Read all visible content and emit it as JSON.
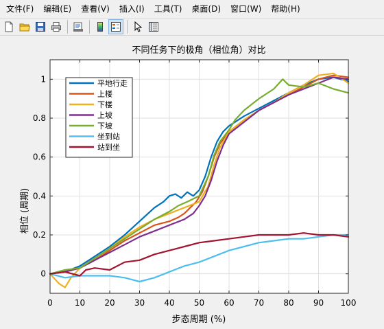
{
  "menubar": {
    "items": [
      "文件(F)",
      "编辑(E)",
      "查看(V)",
      "插入(I)",
      "工具(T)",
      "桌面(D)",
      "窗口(W)",
      "帮助(H)"
    ]
  },
  "toolbar": {
    "buttons": [
      "new-file-icon",
      "open-folder-icon",
      "save-icon",
      "print-icon",
      "print-preview-icon",
      "colorbar-icon",
      "legend-icon",
      "pointer-icon",
      "property-inspector-icon"
    ]
  },
  "chart_data": {
    "type": "line",
    "title": "不同任务下的极角（相位角）对比",
    "xlabel": "步态周期 (%)",
    "ylabel": "相位 (周期)",
    "xlim": [
      0,
      100
    ],
    "ylim": [
      -0.1,
      1.1
    ],
    "xticks": [
      0,
      10,
      20,
      30,
      40,
      50,
      60,
      70,
      80,
      90,
      100
    ],
    "yticks": [
      0,
      0.2,
      0.4,
      0.6,
      0.8,
      1
    ],
    "xtick_labels": [
      "0",
      "10",
      "20",
      "30",
      "40",
      "50",
      "60",
      "70",
      "80",
      "90",
      "100"
    ],
    "ytick_labels": [
      "0",
      "0.2",
      "0.4",
      "0.6",
      "0.8",
      "1"
    ],
    "grid": true,
    "legend_position": "top-left",
    "series": [
      {
        "name": "平地行走",
        "color": "#0072BD",
        "x": [
          0,
          5,
          10,
          15,
          20,
          25,
          30,
          35,
          38,
          40,
          42,
          44,
          46,
          48,
          50,
          52,
          54,
          56,
          58,
          60,
          65,
          70,
          75,
          80,
          85,
          90,
          95,
          100
        ],
        "y": [
          0,
          0.01,
          0.04,
          0.09,
          0.14,
          0.2,
          0.27,
          0.34,
          0.37,
          0.4,
          0.41,
          0.39,
          0.42,
          0.4,
          0.43,
          0.5,
          0.6,
          0.68,
          0.73,
          0.76,
          0.81,
          0.85,
          0.89,
          0.93,
          0.97,
          1.0,
          1.01,
          0.99
        ]
      },
      {
        "name": "上楼",
        "color": "#D95319",
        "x": [
          0,
          5,
          10,
          15,
          20,
          25,
          30,
          35,
          40,
          43,
          45,
          47,
          49,
          51,
          53,
          55,
          57,
          60,
          65,
          70,
          75,
          80,
          85,
          90,
          95,
          100
        ],
        "y": [
          0,
          0.01,
          0.03,
          0.07,
          0.12,
          0.17,
          0.21,
          0.25,
          0.27,
          0.29,
          0.31,
          0.34,
          0.37,
          0.42,
          0.5,
          0.6,
          0.67,
          0.73,
          0.79,
          0.84,
          0.88,
          0.92,
          0.96,
          1.0,
          1.02,
          1.01
        ]
      },
      {
        "name": "下楼",
        "color": "#EDB120",
        "x": [
          0,
          3,
          5,
          7,
          10,
          15,
          20,
          25,
          30,
          35,
          40,
          45,
          50,
          53,
          55,
          57,
          60,
          65,
          70,
          75,
          80,
          85,
          90,
          95,
          100
        ],
        "y": [
          0,
          -0.05,
          -0.07,
          -0.02,
          0.03,
          0.08,
          0.13,
          0.19,
          0.24,
          0.28,
          0.31,
          0.34,
          0.37,
          0.45,
          0.56,
          0.65,
          0.73,
          0.79,
          0.84,
          0.88,
          0.93,
          0.97,
          1.02,
          1.03,
          0.98
        ]
      },
      {
        "name": "上坡",
        "color": "#7E2F8E",
        "x": [
          0,
          5,
          10,
          15,
          20,
          25,
          30,
          35,
          40,
          45,
          48,
          50,
          52,
          54,
          56,
          58,
          60,
          65,
          70,
          75,
          80,
          85,
          90,
          95,
          100
        ],
        "y": [
          0,
          0.01,
          0.03,
          0.07,
          0.11,
          0.15,
          0.19,
          0.22,
          0.25,
          0.28,
          0.31,
          0.35,
          0.4,
          0.48,
          0.58,
          0.66,
          0.72,
          0.78,
          0.84,
          0.88,
          0.92,
          0.95,
          0.98,
          1.01,
          1.0
        ]
      },
      {
        "name": "下坡",
        "color": "#77AC30",
        "x": [
          0,
          5,
          10,
          15,
          20,
          25,
          30,
          35,
          40,
          43,
          46,
          50,
          53,
          55,
          57,
          60,
          62,
          65,
          70,
          75,
          78,
          80,
          85,
          90,
          95,
          100
        ],
        "y": [
          0,
          0.02,
          0.03,
          0.08,
          0.13,
          0.18,
          0.23,
          0.28,
          0.32,
          0.35,
          0.37,
          0.4,
          0.5,
          0.61,
          0.68,
          0.74,
          0.79,
          0.84,
          0.9,
          0.95,
          1.0,
          0.97,
          0.96,
          0.98,
          0.95,
          0.93
        ]
      },
      {
        "name": "坐到站",
        "color": "#4DBEEE",
        "x": [
          0,
          5,
          10,
          15,
          20,
          25,
          30,
          35,
          40,
          45,
          50,
          55,
          60,
          65,
          70,
          75,
          80,
          85,
          90,
          95,
          100
        ],
        "y": [
          0,
          -0.02,
          -0.01,
          -0.01,
          -0.01,
          -0.02,
          -0.04,
          -0.02,
          0.01,
          0.04,
          0.06,
          0.09,
          0.12,
          0.14,
          0.16,
          0.17,
          0.18,
          0.18,
          0.19,
          0.2,
          0.2
        ]
      },
      {
        "name": "站到坐",
        "color": "#A2142F",
        "x": [
          0,
          5,
          10,
          12,
          15,
          20,
          25,
          30,
          35,
          40,
          45,
          50,
          55,
          60,
          65,
          70,
          75,
          80,
          85,
          90,
          95,
          100
        ],
        "y": [
          0,
          0.01,
          -0.01,
          0.02,
          0.03,
          0.02,
          0.06,
          0.07,
          0.1,
          0.12,
          0.14,
          0.16,
          0.17,
          0.18,
          0.19,
          0.2,
          0.2,
          0.2,
          0.21,
          0.2,
          0.2,
          0.19
        ]
      }
    ]
  }
}
